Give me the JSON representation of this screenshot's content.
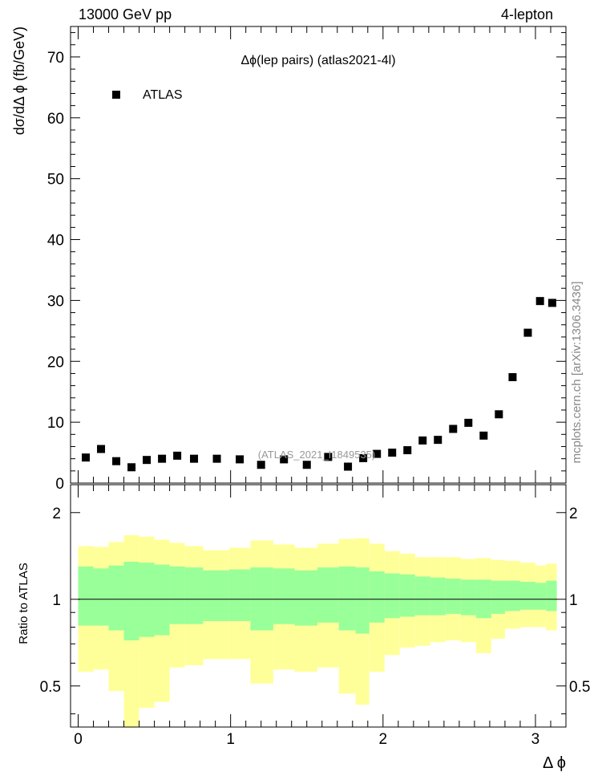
{
  "header": {
    "left": "13000 GeV pp",
    "right": "4-lepton"
  },
  "side_label": "mcplots.cern.ch [arXiv:1306.3436]",
  "main_plot": {
    "title": "Δϕ(lep pairs) (atlas2021-4l)",
    "ylabel": "dσ/dΔ ϕ (fb/GeV)",
    "watermark": "(ATLAS_2021_I1849535)",
    "legend": [
      {
        "label": "ATLAS",
        "marker": "square",
        "color": "#000000"
      }
    ]
  },
  "ratio_plot": {
    "ylabel": "Ratio to ATLAS",
    "xlabel": "Δ ϕ"
  },
  "colors": {
    "data": "#000000",
    "band_inner": "#99ff99",
    "band_outer": "#ffff99"
  },
  "chart_data": [
    {
      "type": "scatter",
      "title": "Δϕ(lep pairs) (atlas2021-4l)",
      "xlabel": "",
      "ylabel": "dσ/dΔ ϕ (fb/GeV)",
      "xlim": [
        -0.05,
        3.2
      ],
      "ylim": [
        0,
        75
      ],
      "yticks": [
        0,
        10,
        20,
        30,
        40,
        50,
        60,
        70
      ],
      "xticks": [
        0,
        1,
        2,
        3
      ],
      "legend_position": "top-left",
      "series": [
        {
          "name": "ATLAS",
          "marker": "square",
          "color": "#000000",
          "x": [
            0.05,
            0.15,
            0.25,
            0.35,
            0.45,
            0.55,
            0.65,
            0.76,
            0.91,
            1.06,
            1.2,
            1.35,
            1.5,
            1.64,
            1.77,
            1.87,
            1.96,
            2.06,
            2.16,
            2.26,
            2.36,
            2.46,
            2.56,
            2.66,
            2.76,
            2.85,
            2.95,
            3.03,
            3.11
          ],
          "y": [
            4.2,
            5.6,
            3.6,
            2.6,
            3.8,
            4.0,
            4.5,
            4.0,
            4.0,
            3.9,
            3.0,
            3.9,
            3.0,
            4.3,
            2.7,
            4.1,
            4.8,
            5.0,
            5.4,
            7.0,
            7.1,
            8.9,
            9.9,
            7.8,
            11.3,
            17.4,
            24.7,
            29.9,
            29.6
          ]
        }
      ]
    },
    {
      "type": "area",
      "title": "",
      "xlabel": "Δ ϕ",
      "ylabel": "Ratio to ATLAS",
      "scale": "log",
      "xlim": [
        -0.05,
        3.2
      ],
      "ylim": [
        0.36,
        2.5
      ],
      "yticks": [
        0.5,
        1,
        2
      ],
      "xticks": [
        0,
        1,
        2,
        3
      ],
      "reference_line": 1,
      "bin_edges": [
        0.0,
        0.1,
        0.2,
        0.3,
        0.4,
        0.5,
        0.6,
        0.7,
        0.82,
        0.99,
        1.13,
        1.28,
        1.42,
        1.57,
        1.71,
        1.82,
        1.91,
        2.01,
        2.11,
        2.21,
        2.31,
        2.41,
        2.51,
        2.61,
        2.71,
        2.8,
        2.9,
        3.0,
        3.07,
        3.14
      ],
      "series": [
        {
          "name": "",
          "color": "#ffff99",
          "upper": [
            1.53,
            1.52,
            1.58,
            1.67,
            1.65,
            1.61,
            1.57,
            1.53,
            1.48,
            1.51,
            1.6,
            1.55,
            1.51,
            1.56,
            1.62,
            1.63,
            1.56,
            1.47,
            1.44,
            1.4,
            1.4,
            1.4,
            1.38,
            1.39,
            1.37,
            1.36,
            1.34,
            1.31,
            1.33
          ],
          "lower": [
            0.56,
            0.57,
            0.48,
            0.36,
            0.42,
            0.44,
            0.58,
            0.59,
            0.62,
            0.62,
            0.51,
            0.57,
            0.56,
            0.58,
            0.47,
            0.43,
            0.56,
            0.64,
            0.68,
            0.69,
            0.71,
            0.72,
            0.71,
            0.65,
            0.73,
            0.79,
            0.8,
            0.8,
            0.78
          ]
        },
        {
          "name": "",
          "color": "#99ff99",
          "upper": [
            1.3,
            1.28,
            1.31,
            1.35,
            1.34,
            1.32,
            1.3,
            1.29,
            1.26,
            1.27,
            1.29,
            1.28,
            1.26,
            1.29,
            1.3,
            1.29,
            1.25,
            1.23,
            1.22,
            1.2,
            1.19,
            1.18,
            1.17,
            1.17,
            1.16,
            1.16,
            1.15,
            1.14,
            1.16
          ],
          "lower": [
            0.81,
            0.81,
            0.78,
            0.72,
            0.74,
            0.75,
            0.82,
            0.82,
            0.84,
            0.84,
            0.78,
            0.82,
            0.81,
            0.83,
            0.78,
            0.76,
            0.83,
            0.86,
            0.87,
            0.88,
            0.88,
            0.89,
            0.88,
            0.86,
            0.89,
            0.91,
            0.92,
            0.92,
            0.91
          ]
        }
      ]
    }
  ]
}
